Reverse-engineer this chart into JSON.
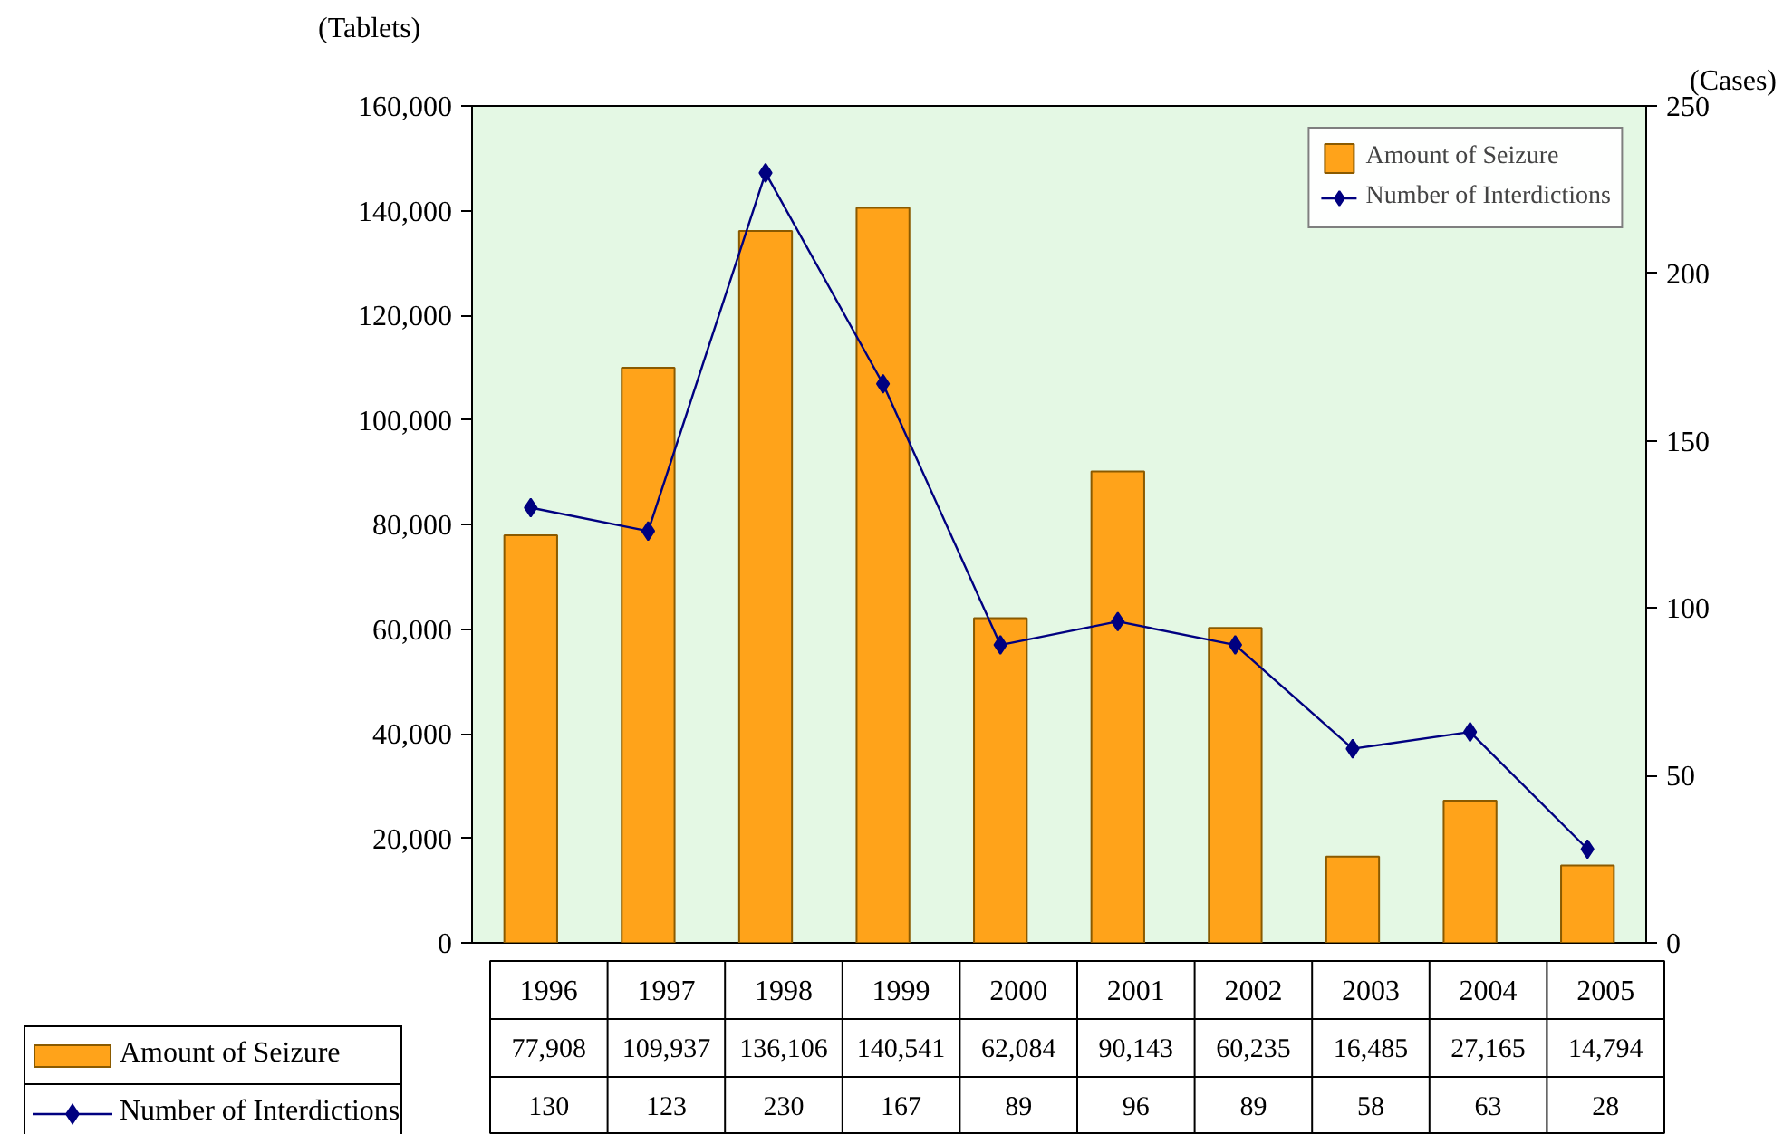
{
  "chart_data": {
    "type": "bar",
    "ylabel": "(Tablets)",
    "y2label": "(Cases)",
    "categories": [
      "1996",
      "1997",
      "1998",
      "1999",
      "2000",
      "2001",
      "2002",
      "2003",
      "2004",
      "2005"
    ],
    "series": [
      {
        "name": "Amount of Seizure",
        "type": "bar",
        "color": "#ffa31a",
        "values": [
          77908,
          109937,
          136106,
          140541,
          62084,
          90143,
          60235,
          16485,
          27165,
          14794
        ],
        "value_labels": [
          "77,908",
          "109,937",
          "136,106",
          "140,541",
          "62,084",
          "90,143",
          "60,235",
          "16,485",
          "27,165",
          "14,794"
        ]
      },
      {
        "name": "Number of Interdictions",
        "type": "line",
        "axis": "y2",
        "color": "#000080",
        "marker": "diamond",
        "values": [
          130,
          123,
          230,
          167,
          89,
          96,
          89,
          58,
          63,
          28
        ]
      }
    ],
    "ylim": [
      0,
      160000
    ],
    "yticks": [
      0,
      {
        "value": 20000,
        "label": "20,000"
      },
      {
        "value": 40000,
        "label": "40,000"
      },
      {
        "value": 60000,
        "label": "60,000"
      },
      {
        "value": 80000,
        "label": "80,000"
      },
      {
        "value": 100000,
        "label": "100,000"
      },
      {
        "value": 120000,
        "label": "120,000"
      },
      {
        "value": 140000,
        "label": "140,000"
      },
      {
        "value": 160000,
        "label": "160,000"
      }
    ],
    "y2lim": [
      0,
      250
    ],
    "y2ticks": [
      0,
      50,
      100,
      150,
      200,
      250
    ],
    "data_labels": true,
    "legend": "top right",
    "grid": false
  }
}
